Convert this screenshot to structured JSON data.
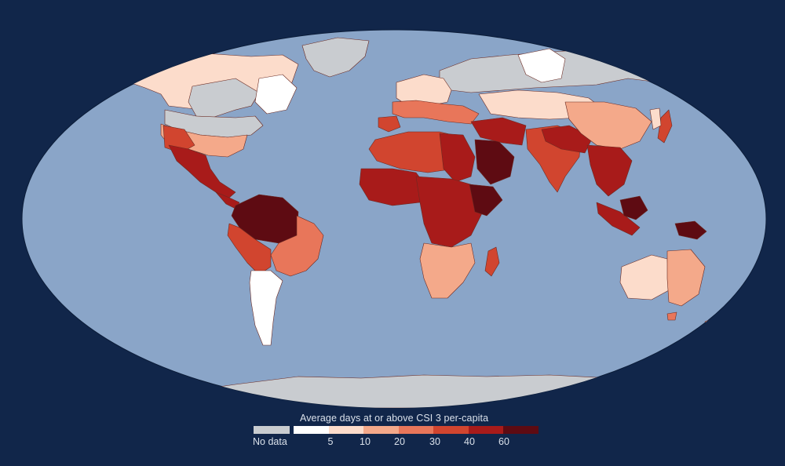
{
  "colors": {
    "background": "#11264a",
    "ocean": "#8aa5c8",
    "no_data": "#c9ccd0",
    "scale": [
      "#ffffff",
      "#fcdccb",
      "#f4a98a",
      "#e8765a",
      "#d1452f",
      "#a81b1a",
      "#5e0b12"
    ]
  },
  "legend": {
    "title": "Average days at or above CSI 3 per-capita",
    "no_data_label": "No data",
    "ticks": [
      "5",
      "10",
      "20",
      "30",
      "40",
      "60"
    ]
  }
}
